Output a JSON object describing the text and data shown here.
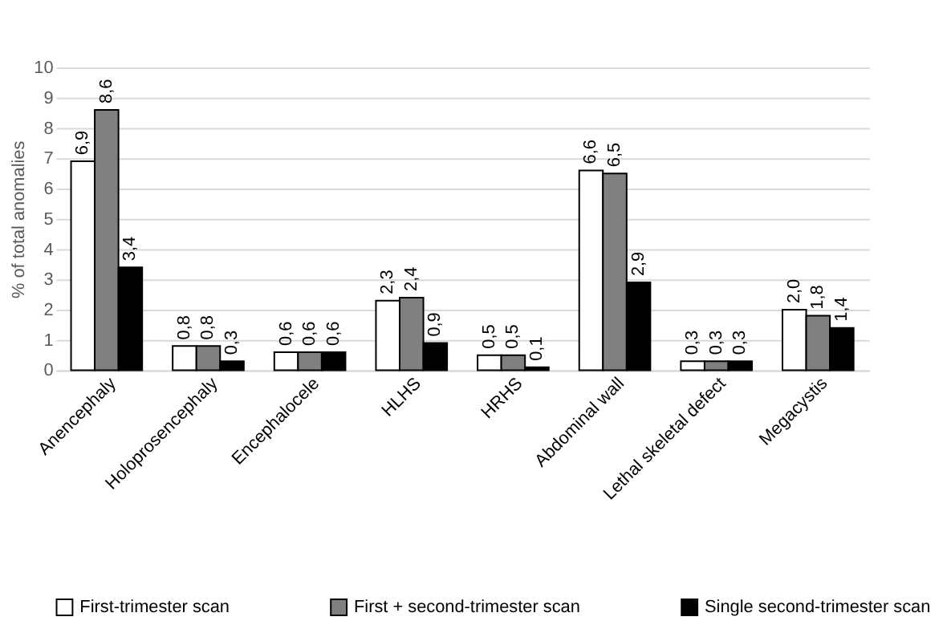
{
  "chart_data": {
    "type": "bar",
    "ylabel": "% of total anomalies",
    "categories": [
      "Anencephaly",
      "Holoprosencephaly",
      "Encephalocele",
      "HLHS",
      "HRHS",
      "Abdominal wall",
      "Lethal skeletal defect",
      "Megacystis"
    ],
    "series": [
      {
        "name": "First-trimester scan",
        "color": "#ffffff",
        "values": [
          6.9,
          0.8,
          0.6,
          2.3,
          0.5,
          6.6,
          0.3,
          2.0
        ],
        "value_labels": [
          "6,9",
          "0,8",
          "0,6",
          "2,3",
          "0,5",
          "6,6",
          "0,3",
          "2,0"
        ]
      },
      {
        "name": "First + second-trimester scan",
        "color": "#808080",
        "values": [
          8.6,
          0.8,
          0.6,
          2.4,
          0.5,
          6.5,
          0.3,
          1.8
        ],
        "value_labels": [
          "8,6",
          "0,8",
          "0,6",
          "2,4",
          "0,5",
          "6,5",
          "0,3",
          "1,8"
        ]
      },
      {
        "name": "Single second-trimester scan",
        "color": "#000000",
        "values": [
          3.4,
          0.3,
          0.6,
          0.9,
          0.1,
          2.9,
          0.3,
          1.4
        ],
        "value_labels": [
          "3,4",
          "0,3",
          "0,6",
          "0,9",
          "0,1",
          "2,9",
          "0,3",
          "1,4"
        ]
      }
    ],
    "ylim": [
      0,
      10
    ],
    "yticks": [
      0,
      1,
      2,
      3,
      4,
      5,
      6,
      7,
      8,
      9,
      10
    ],
    "grid": "y",
    "legend": "bottom"
  }
}
